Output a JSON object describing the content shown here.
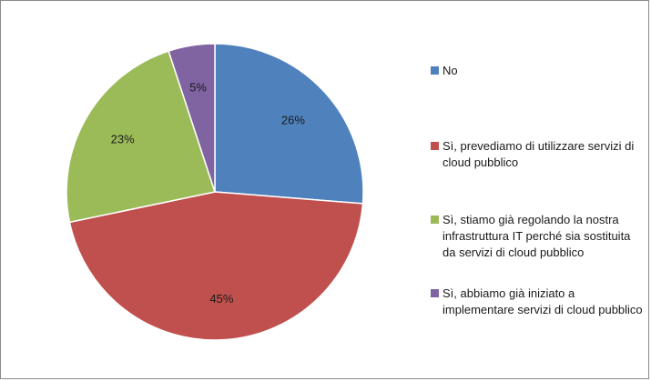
{
  "chart_data": {
    "type": "pie",
    "categories": [
      "No",
      "Sì, prevediamo di utilizzare servizi di cloud pubblico",
      "Sì, stiamo già regolando la nostra infrastruttura IT perché sia sostituita da servizi di cloud pubblico",
      "Sì, abbiamo già iniziato a implementare servizi di cloud pubblico"
    ],
    "values": [
      26,
      45,
      23,
      5
    ],
    "data_labels": [
      "26%",
      "45%",
      "23%",
      "5%"
    ],
    "colors": [
      "#4f81bd",
      "#c0504d",
      "#9bbb59",
      "#8064a2"
    ],
    "legend_placement": "right",
    "start_angle": "12 o'clock",
    "direction": "clockwise"
  }
}
